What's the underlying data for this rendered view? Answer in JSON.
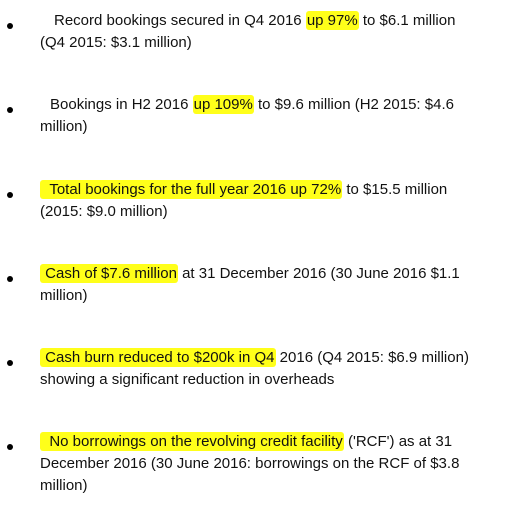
{
  "highlight_color": "#ffff1a",
  "bullets": [
    {
      "line1": {
        "pre": "Record bookings secured in Q4 2016 ",
        "highlight": "up 97%",
        "post": " to $6.1 million"
      },
      "line2": "(Q4 2015: $3.1 million)"
    },
    {
      "line1": {
        "pre": "Bookings in H2 2016 ",
        "highlight": "up 109%",
        "post": " to $9.6 million (H2 2015: $4.6"
      },
      "line2": "million)"
    },
    {
      "line1": {
        "pre": "",
        "highlight": "Total bookings for the full year 2016 up 72%",
        "post": " to $15.5 million"
      },
      "line2": "(2015: $9.0 million)"
    },
    {
      "line1": {
        "pre": "",
        "highlight": "Cash of $7.6 million",
        "post": " at 31 December 2016 (30 June 2016 $1.1"
      },
      "line2": "million)"
    },
    {
      "line1": {
        "pre": "",
        "highlight": "Cash burn reduced to $200k in Q4",
        "post": " 2016 (Q4 2015: $6.9 million)"
      },
      "line2": "showing a significant reduction in overheads"
    },
    {
      "line1": {
        "pre": "",
        "highlight": "No borrowings on the revolving credit facility",
        "post": " ('RCF') as at 31"
      },
      "line2": "December 2016 (30 June 2016: borrowings on the RCF of $3.8",
      "line3": "million)"
    }
  ]
}
